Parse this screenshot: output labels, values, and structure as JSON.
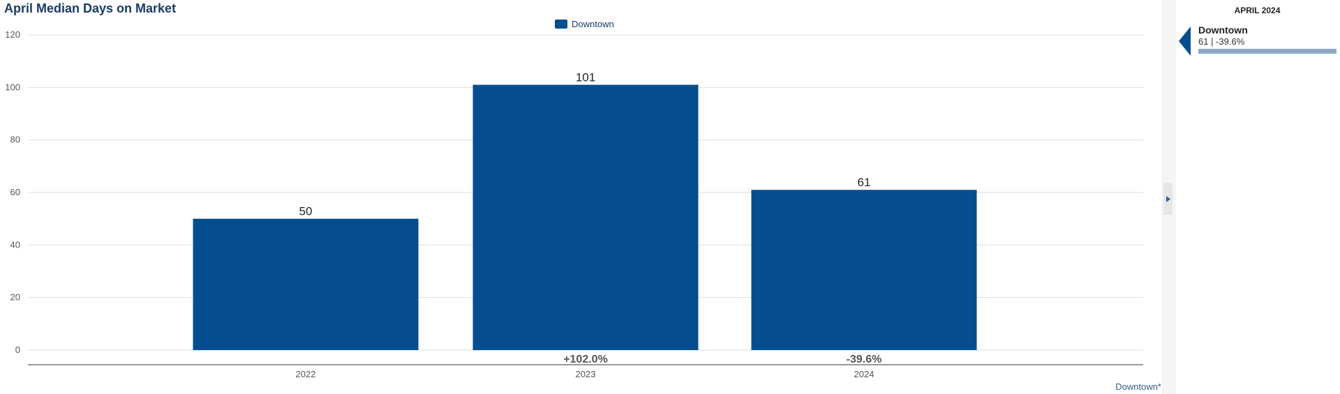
{
  "title": "April Median Days on Market",
  "legend": {
    "label": "Downtown",
    "color": "#044e8f"
  },
  "footer_label": "Downtown*",
  "colors": {
    "bar": "#044e8f",
    "grid": "#dddddd",
    "axis": "#999999",
    "panel_bar": "#8fa7c4"
  },
  "chart_data": {
    "type": "bar",
    "title": "April Median Days on Market",
    "xlabel": "",
    "ylabel": "",
    "categories": [
      "2022",
      "2023",
      "2024"
    ],
    "series": [
      {
        "name": "Downtown",
        "values": [
          50,
          101,
          61
        ]
      }
    ],
    "change_labels": [
      "",
      "+102.0%",
      "-39.6%"
    ],
    "y_ticks": [
      0,
      20,
      40,
      60,
      80,
      100,
      120
    ],
    "ylim": [
      0,
      120
    ],
    "grid": true,
    "legend_position": "top"
  },
  "side_panel": {
    "header": "APRIL 2024",
    "item_name": "Downtown",
    "item_value": "61 | -39.6%",
    "pointer_icon": "triangle-left-icon",
    "collapse_icon": "chevron-right-icon"
  }
}
